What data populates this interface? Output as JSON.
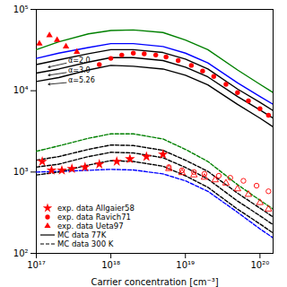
{
  "chart_data": {
    "type": "line",
    "xlabel": "Carrier concentration [cm⁻³]",
    "log": true,
    "grid": false,
    "legend": "lower left",
    "xlim": [
      1e+17,
      1.5e+20
    ],
    "ylim": [
      100.0,
      100000.0
    ],
    "xticks": [
      {
        "value": 1e+17,
        "label": "10¹⁷"
      },
      {
        "value": 1e+18,
        "label": "10¹⁸"
      },
      {
        "value": 1e+19,
        "label": "10¹⁹"
      },
      {
        "value": 1e+20,
        "label": "10²⁰"
      }
    ],
    "yticks": [
      {
        "value": 100.0,
        "label": "10²"
      },
      {
        "value": 1000.0,
        "label": "10³"
      },
      {
        "value": 10000.0,
        "label": "10⁴"
      },
      {
        "value": 100000.0,
        "label": "10⁵"
      }
    ],
    "series": [
      {
        "name": "MC data 77K",
        "type": "line",
        "color": "green",
        "line_style": "solid",
        "x": [
          1e+17,
          2e+17,
          5e+17,
          1e+18,
          2e+18,
          5e+18,
          1e+19,
          2e+19,
          5e+19,
          1e+20,
          1.5e+20
        ],
        "values": [
          32000.0,
          40000.0,
          50000.0,
          55000.0,
          56000.0,
          52000.0,
          42000.0,
          32000.0,
          18000.0,
          12000.0,
          9500.0
        ]
      },
      {
        "name": "MC data 77K",
        "type": "line",
        "color": "blue",
        "line_style": "solid",
        "x": [
          1e+17,
          2e+17,
          5e+17,
          1e+18,
          2e+18,
          5e+18,
          1e+19,
          2e+19,
          5e+19,
          1e+20,
          1.5e+20
        ],
        "values": [
          25000.0,
          29000.0,
          34000.0,
          38000.0,
          38000.0,
          35000.0,
          29000.0,
          22000.0,
          12500.0,
          8500.0,
          6800.0
        ]
      },
      {
        "name": "MC data 77K",
        "type": "line",
        "color": "black",
        "line_style": "solid",
        "x": [
          1e+17,
          2e+17,
          5e+17,
          1e+18,
          2e+18,
          5e+18,
          1e+19,
          2e+19,
          5e+19,
          1e+20,
          1.5e+20
        ],
        "values": [
          21000.0,
          24000.0,
          28500.0,
          32000.0,
          32000.0,
          29500.0,
          24500.0,
          18500.0,
          10500.0,
          7200.0,
          5700.0
        ]
      },
      {
        "name": "MC data 77K",
        "type": "line",
        "color": "black",
        "line_style": "solid",
        "x": [
          1e+17,
          2e+17,
          5e+17,
          1e+18,
          2e+18,
          5e+18,
          1e+19,
          2e+19,
          5e+19,
          1e+20,
          1.5e+20
        ],
        "values": [
          16500.0,
          18500.0,
          22500.0,
          25500.0,
          25500.0,
          23500.0,
          19500.0,
          14800.0,
          8500.0,
          5800.0,
          4600.0
        ]
      },
      {
        "name": "MC data 77K",
        "type": "line",
        "color": "black",
        "line_style": "solid",
        "x": [
          1e+17,
          2e+17,
          5e+17,
          1e+18,
          2e+18,
          5e+18,
          1e+19,
          2e+19,
          5e+19,
          1e+20,
          1.5e+20
        ],
        "values": [
          13000.0,
          14500.0,
          18000.0,
          20500.0,
          20000.0,
          18500.0,
          15500.0,
          11800.0,
          6800.0,
          4600.0,
          3600.0
        ]
      },
      {
        "name": "MC data 300 K",
        "type": "line",
        "color": "green",
        "line_style": "dashed",
        "x": [
          1e+17,
          2e+17,
          5e+17,
          1e+18,
          2e+18,
          5e+18,
          1e+19,
          2e+19,
          5e+19,
          1e+20,
          1.5e+20
        ],
        "values": [
          1800.0,
          2100.0,
          2600.0,
          2950.0,
          2950.0,
          2550.0,
          1900.0,
          1350.0,
          700.0,
          450.0,
          350.0
        ]
      },
      {
        "name": "MC data 300 K",
        "type": "line",
        "color": "blue",
        "line_style": "dashed",
        "x": [
          1e+17,
          2e+17,
          5e+17,
          1e+18,
          2e+18,
          5e+18,
          1e+19,
          2e+19,
          5e+19,
          1e+20,
          1.5e+20
        ],
        "values": [
          1000.0,
          1020.0,
          1050.0,
          1080.0,
          1060.0,
          950.0,
          780.0,
          580.0,
          320.0,
          200.0,
          155.0
        ]
      },
      {
        "name": "MC data 300 K",
        "type": "line",
        "color": "black",
        "line_style": "dashed",
        "x": [
          1e+17,
          2e+17,
          5e+17,
          1e+18,
          2e+18,
          5e+18,
          1e+19,
          2e+19,
          5e+19,
          1e+20,
          1.5e+20
        ],
        "values": [
          1400.0,
          1550.0,
          1900.0,
          2150.0,
          2120.0,
          1850.0,
          1400.0,
          1020.0,
          550.0,
          360.0,
          280.0
        ]
      },
      {
        "name": "MC data 300 K",
        "type": "line",
        "color": "black",
        "line_style": "dashed",
        "x": [
          1e+17,
          2e+17,
          5e+17,
          1e+18,
          2e+18,
          5e+18,
          1e+19,
          2e+19,
          5e+19,
          1e+20,
          1.5e+20
        ],
        "values": [
          1150.0,
          1250.0,
          1550.0,
          1750.0,
          1720.0,
          1500.0,
          1140.0,
          820.0,
          440.0,
          290.0,
          225.0
        ]
      },
      {
        "name": "MC data 300 K",
        "type": "line",
        "color": "black",
        "line_style": "dashed",
        "x": [
          1e+17,
          2e+17,
          5e+17,
          1e+18,
          2e+18,
          5e+18,
          1e+19,
          2e+19,
          5e+19,
          1e+20,
          1.5e+20
        ],
        "values": [
          920.0,
          1000.0,
          1220.0,
          1380.0,
          1350.0,
          1180.0,
          900.0,
          650.0,
          350.0,
          230.0,
          178.0
        ]
      },
      {
        "name": "exp. data Allgaier58",
        "type": "scatter",
        "color": "red",
        "marker": "star",
        "x": [
          1.2e+17,
          1.6e+17,
          2.2e+17,
          3e+17,
          4.5e+17,
          7e+17,
          1.2e+18,
          1.8e+18,
          3e+18,
          5e+18
        ],
        "values": [
          1350.0,
          1050.0,
          1050.0,
          1100.0,
          1150.0,
          1250.0,
          1350.0,
          1450.0,
          1550.0,
          1650.0
        ]
      },
      {
        "name": "exp. data Ravich71",
        "type": "scatter",
        "color": "red",
        "marker": "circle",
        "x": [
          7e+17,
          1e+18,
          1.4e+18,
          2e+18,
          2.8e+18,
          4e+18,
          5.5e+18,
          8e+18,
          1.2e+19,
          1.7e+19,
          2.4e+19,
          3.5e+19,
          5e+19,
          7e+19,
          1e+20,
          1.3e+20
        ],
        "values": [
          21000.0,
          25000.0,
          27500.0,
          29000.0,
          28500.0,
          27500.0,
          26000.0,
          23500.0,
          20500.0,
          17500.0,
          15000.0,
          12000.0,
          9500.0,
          7500.0,
          6000.0,
          5000.0
        ]
      },
      {
        "name": "exp. data Ueta97",
        "type": "scatter",
        "color": "red",
        "marker": "triangle",
        "x": [
          1.1e+17,
          1.5e+17,
          1.9e+17,
          2.5e+17,
          3.5e+17
        ],
        "values": [
          38000.0,
          48000.0,
          42000.0,
          35000.0,
          30000.0
        ]
      },
      {
        "name": "exp. data Ueta97",
        "type": "scatter",
        "color": "red",
        "marker": "triangle-open",
        "x": [
          6e+18,
          9e+18,
          1.3e+19,
          1.8e+19,
          2.5e+19,
          3.5e+19,
          5e+19,
          7e+19,
          1e+20,
          1.3e+20
        ],
        "values": [
          1100.0,
          980.0,
          920.0,
          860.0,
          800.0,
          730.0,
          620.0,
          530.0,
          420.0,
          350.0
        ]
      },
      {
        "name": "exp. data Ravich71",
        "type": "scatter",
        "color": "red",
        "marker": "circle-open",
        "x": [
          6e+18,
          9e+18,
          1.3e+19,
          1.8e+19,
          2.8e+19,
          4e+19,
          6e+19,
          9e+19,
          1.3e+20
        ],
        "values": [
          1150.0,
          1050.0,
          1000.0,
          950.0,
          900.0,
          850.0,
          780.0,
          680.0,
          580.0
        ]
      }
    ],
    "annotations": [
      {
        "text": "α=2.0",
        "x": 2.6e+17,
        "y": 22000.0,
        "arrow_x": 1.45e+17,
        "arrow_y": 19500.0
      },
      {
        "text": "α=3.0",
        "x": 2.6e+17,
        "y": 16800.0,
        "arrow_x": 1.45e+17,
        "arrow_y": 15500.0
      },
      {
        "text": "α=5.26",
        "x": 2.6e+17,
        "y": 12600.0,
        "arrow_x": 1.45e+17,
        "arrow_y": 12000.0
      }
    ]
  }
}
